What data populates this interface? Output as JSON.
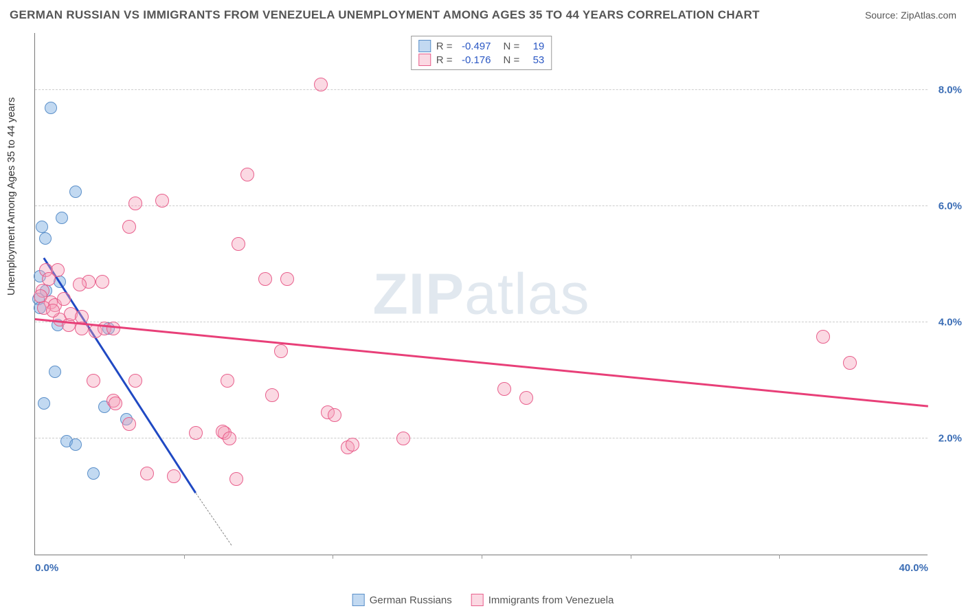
{
  "header": {
    "title": "GERMAN RUSSIAN VS IMMIGRANTS FROM VENEZUELA UNEMPLOYMENT AMONG AGES 35 TO 44 YEARS CORRELATION CHART",
    "source": "Source: ZipAtlas.com"
  },
  "watermark": {
    "bold": "ZIP",
    "light": "atlas"
  },
  "chart": {
    "type": "scatter-with-trend",
    "background_color": "#ffffff",
    "grid_color": "#cccccc",
    "axis_color": "#777777",
    "yaxis_title": "Unemployment Among Ages 35 to 44 years",
    "yaxis_title_color": "#333333",
    "yaxis_title_fontsize": 15,
    "ylim": [
      0,
      9
    ],
    "yticks": [
      2.0,
      4.0,
      6.0,
      8.0
    ],
    "ytick_labels": [
      "2.0%",
      "4.0%",
      "6.0%",
      "8.0%"
    ],
    "ytick_color": "#3b6db5",
    "xlim": [
      0,
      40
    ],
    "xticks": [
      0.0,
      40.0
    ],
    "xtick_labels": [
      "0.0%",
      "40.0%"
    ],
    "xtick_minor": [
      6.67,
      13.33,
      20.0,
      26.67,
      33.33
    ],
    "xtick_color": "#3b6db5",
    "series": [
      {
        "name": "German Russians",
        "label": "German Russians",
        "color_fill": "rgba(120,170,225,0.45)",
        "color_stroke": "#5a8fc9",
        "marker_radius": 9,
        "R": "-0.497",
        "N": "19",
        "trend": {
          "x1": 0.4,
          "y1": 5.1,
          "x2": 7.2,
          "y2": 1.05,
          "color": "#2049c3",
          "dash_x2": 8.8,
          "dash_y2": 0.15
        },
        "points": [
          [
            0.7,
            7.7
          ],
          [
            1.8,
            6.25
          ],
          [
            0.3,
            5.65
          ],
          [
            0.45,
            5.45
          ],
          [
            1.2,
            5.8
          ],
          [
            0.2,
            4.8
          ],
          [
            0.15,
            4.4
          ],
          [
            0.5,
            4.55
          ],
          [
            1.1,
            4.7
          ],
          [
            0.2,
            4.25
          ],
          [
            1.0,
            3.95
          ],
          [
            0.9,
            3.15
          ],
          [
            0.4,
            2.6
          ],
          [
            1.4,
            1.95
          ],
          [
            1.8,
            1.9
          ],
          [
            2.6,
            1.4
          ],
          [
            4.1,
            2.33
          ],
          [
            3.3,
            3.9
          ],
          [
            3.1,
            2.55
          ]
        ]
      },
      {
        "name": "Immigrants from Venezuela",
        "label": "Immigrants from Venezuela",
        "color_fill": "rgba(245,160,185,0.40)",
        "color_stroke": "#e85f8c",
        "marker_radius": 10,
        "R": "-0.176",
        "N": "53",
        "trend": {
          "x1": 0.0,
          "y1": 4.05,
          "x2": 40.0,
          "y2": 2.55,
          "color": "#e83f78"
        },
        "points": [
          [
            0.5,
            4.9
          ],
          [
            0.6,
            4.75
          ],
          [
            0.35,
            4.55
          ],
          [
            0.25,
            4.45
          ],
          [
            0.7,
            4.35
          ],
          [
            0.9,
            4.3
          ],
          [
            0.4,
            4.25
          ],
          [
            1.3,
            4.4
          ],
          [
            1.1,
            4.05
          ],
          [
            1.5,
            3.95
          ],
          [
            1.6,
            4.15
          ],
          [
            2.1,
            4.1
          ],
          [
            2.4,
            4.7
          ],
          [
            2.0,
            4.65
          ],
          [
            3.0,
            4.7
          ],
          [
            2.1,
            3.9
          ],
          [
            2.7,
            3.85
          ],
          [
            3.1,
            3.9
          ],
          [
            3.5,
            3.9
          ],
          [
            2.6,
            3.0
          ],
          [
            3.5,
            2.65
          ],
          [
            3.6,
            2.6
          ],
          [
            4.2,
            2.25
          ],
          [
            4.5,
            3.0
          ],
          [
            5.0,
            1.4
          ],
          [
            5.7,
            6.1
          ],
          [
            4.5,
            6.05
          ],
          [
            4.2,
            5.65
          ],
          [
            7.2,
            2.1
          ],
          [
            8.5,
            2.1
          ],
          [
            8.4,
            2.12
          ],
          [
            8.7,
            2.0
          ],
          [
            8.6,
            3.0
          ],
          [
            9.1,
            5.35
          ],
          [
            9.5,
            6.55
          ],
          [
            10.6,
            2.75
          ],
          [
            10.3,
            4.75
          ],
          [
            11.3,
            4.75
          ],
          [
            11.0,
            3.5
          ],
          [
            12.8,
            8.1
          ],
          [
            13.1,
            2.45
          ],
          [
            13.4,
            2.4
          ],
          [
            14.0,
            1.85
          ],
          [
            14.2,
            1.9
          ],
          [
            16.5,
            2.0
          ],
          [
            21.0,
            2.85
          ],
          [
            22.0,
            2.7
          ],
          [
            35.3,
            3.75
          ],
          [
            36.5,
            3.3
          ],
          [
            9.0,
            1.3
          ],
          [
            6.2,
            1.35
          ],
          [
            1.0,
            4.9
          ],
          [
            0.8,
            4.2
          ]
        ]
      }
    ]
  },
  "legend_top": {
    "R_label": "R =",
    "N_label": "N ="
  },
  "legend_bottom_sep": " "
}
